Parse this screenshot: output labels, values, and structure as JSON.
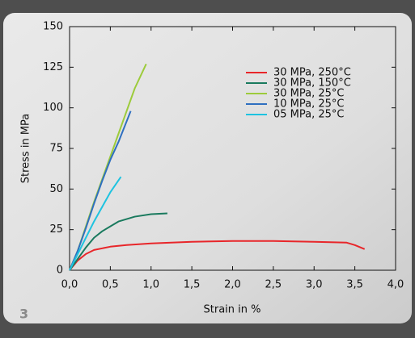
{
  "figure_number": "3",
  "chart_data": {
    "type": "line",
    "x_label": "Strain in %",
    "y_label": "Stress in MPa",
    "xlim": [
      0,
      4
    ],
    "xticks": [
      {
        "value": 0,
        "label": "0,0"
      },
      {
        "value": 0.5,
        "label": "0,5"
      },
      {
        "value": 1,
        "label": "1,0"
      },
      {
        "value": 1.5,
        "label": "1,5"
      },
      {
        "value": 2,
        "label": "2,0"
      },
      {
        "value": 2.5,
        "label": "2,5"
      },
      {
        "value": 3,
        "label": "3,0"
      },
      {
        "value": 3.5,
        "label": "3,5"
      },
      {
        "value": 4,
        "label": "4,0"
      }
    ],
    "ylim": [
      0,
      150
    ],
    "yticks": [
      0,
      25,
      50,
      75,
      100,
      125,
      150
    ],
    "series": [
      {
        "name": "30 MPa, 250°C",
        "color": "#e8262a",
        "x": [
          0,
          0.05,
          0.1,
          0.2,
          0.3,
          0.5,
          0.7,
          1.0,
          1.5,
          2.0,
          2.5,
          3.0,
          3.4,
          3.5,
          3.62
        ],
        "values": [
          0,
          3,
          6,
          10,
          12.5,
          14.5,
          15.5,
          16.5,
          17.5,
          18,
          18,
          17.5,
          17,
          15.5,
          13
        ]
      },
      {
        "name": "30 MPa, 150°C",
        "color": "#1a7a5e",
        "x": [
          0,
          0.1,
          0.2,
          0.3,
          0.4,
          0.5,
          0.6,
          0.8,
          1.0,
          1.2
        ],
        "values": [
          0,
          7,
          14,
          20,
          24,
          27,
          30,
          33,
          34.5,
          35
        ]
      },
      {
        "name": "30 MPa, 25°C",
        "color": "#9ccb3b",
        "x": [
          0,
          0.1,
          0.2,
          0.3,
          0.4,
          0.5,
          0.6,
          0.7,
          0.8,
          0.94
        ],
        "values": [
          0,
          12,
          27,
          42,
          56,
          70,
          84,
          98,
          112,
          127
        ]
      },
      {
        "name": "10 MPa, 25°C",
        "color": "#2f6fc0",
        "x": [
          0,
          0.1,
          0.2,
          0.3,
          0.4,
          0.5,
          0.6,
          0.75
        ],
        "values": [
          0,
          12,
          26,
          41,
          55,
          68,
          79,
          98
        ]
      },
      {
        "name": "05 MPa, 25°C",
        "color": "#1ec3e0",
        "x": [
          0,
          0.1,
          0.2,
          0.3,
          0.4,
          0.5,
          0.63
        ],
        "values": [
          0,
          10,
          20,
          30,
          39,
          48,
          57.5
        ]
      }
    ]
  }
}
